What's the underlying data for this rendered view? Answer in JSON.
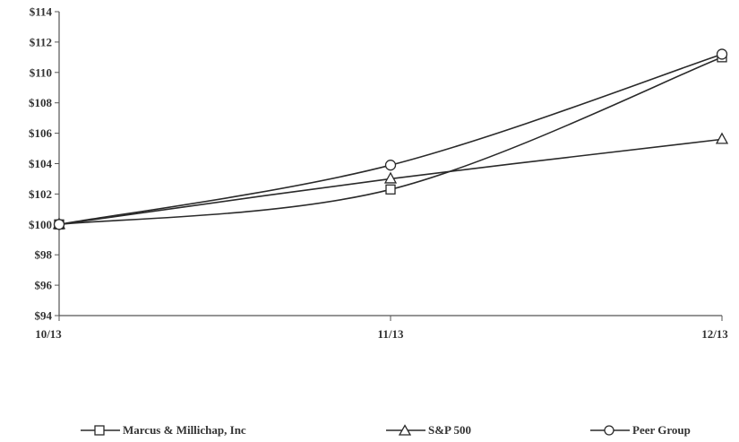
{
  "chart_data": {
    "type": "line",
    "title": "",
    "xlabel": "",
    "ylabel": "",
    "categories": [
      "10/13",
      "11/13",
      "12/13"
    ],
    "ylim": [
      94,
      114
    ],
    "yticks": [
      "$94",
      "$96",
      "$98",
      "$100",
      "$102",
      "$104",
      "$106",
      "$108",
      "$110",
      "$112",
      "$114"
    ],
    "grid": false,
    "legend_position": "bottom",
    "series": [
      {
        "name": "Marcus & Millichap, Inc",
        "marker": "square",
        "values": [
          100,
          102.3,
          111.0
        ]
      },
      {
        "name": "S&P 500",
        "marker": "triangle",
        "values": [
          100,
          103.0,
          105.6
        ]
      },
      {
        "name": "Peer Group",
        "marker": "circle",
        "values": [
          100,
          103.9,
          111.2
        ]
      }
    ],
    "colors": {
      "line": "#2a2a2a",
      "axis": "#555555",
      "marker_fill": "#ffffff"
    }
  }
}
